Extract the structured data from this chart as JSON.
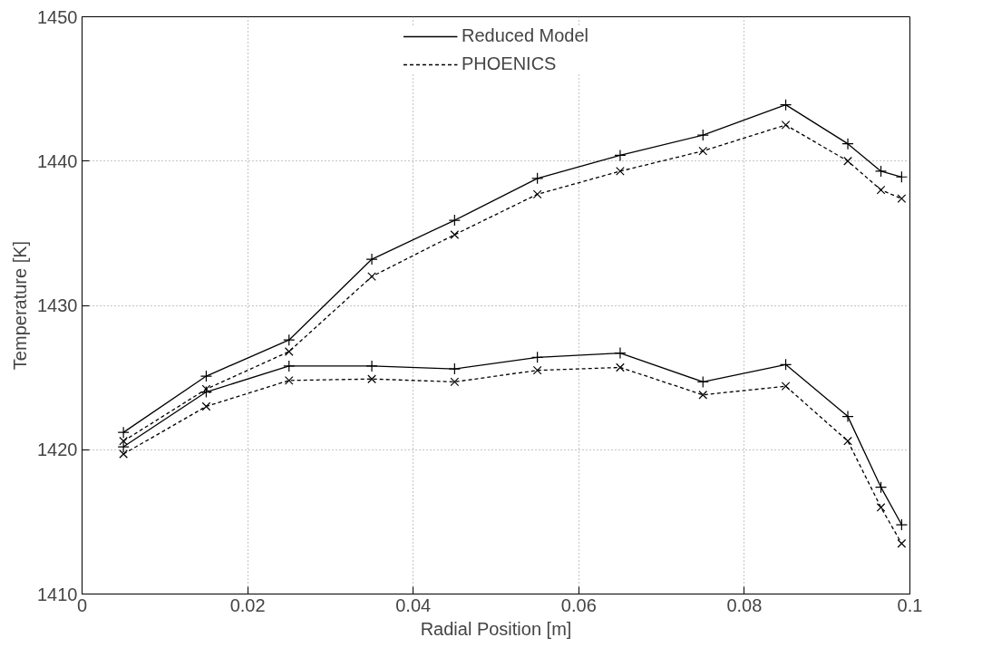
{
  "chart_data": {
    "type": "line",
    "xlabel": "Radial Position [m]",
    "ylabel": "Temperature [K]",
    "x": [
      0.005,
      0.015,
      0.025,
      0.035,
      0.045,
      0.055,
      0.065,
      0.075,
      0.085,
      0.0925,
      0.0965,
      0.099
    ],
    "series": [
      {
        "name": "Reduced Model",
        "color": "#000000",
        "line_style": "solid",
        "marker": "cross",
        "values": [
          1421.2,
          1425.1,
          1427.6,
          1433.2,
          1435.9,
          1438.8,
          1440.4,
          1441.8,
          1443.9,
          1441.2,
          1439.3,
          1438.9
        ]
      },
      {
        "name": "PHOENICS",
        "color": "#000000",
        "line_style": "dashed",
        "marker": "x",
        "values": [
          1420.6,
          1424.2,
          1426.8,
          1432.0,
          1434.9,
          1437.7,
          1439.3,
          1440.7,
          1442.5,
          1440.0,
          1438.0,
          1437.4
        ]
      },
      {
        "color": "#000000",
        "line_style": "solid",
        "marker": "cross",
        "values": [
          1420.2,
          1424.0,
          1425.8,
          1425.8,
          1425.6,
          1426.4,
          1426.7,
          1424.7,
          1425.9,
          1422.3,
          1417.4,
          1414.8
        ]
      },
      {
        "color": "#000000",
        "line_style": "dashed",
        "marker": "x",
        "values": [
          1419.7,
          1423.0,
          1424.8,
          1424.9,
          1424.7,
          1425.5,
          1425.7,
          1423.8,
          1424.4,
          1420.6,
          1416.0,
          1413.5
        ]
      }
    ],
    "xlim": [
      0,
      0.1
    ],
    "xticks": [
      0,
      0.02,
      0.04,
      0.06,
      0.08,
      0.1
    ],
    "ylim": [
      1410,
      1450
    ],
    "yticks": [
      1410,
      1420,
      1430,
      1440,
      1450
    ],
    "grid": true,
    "legend": "top"
  }
}
